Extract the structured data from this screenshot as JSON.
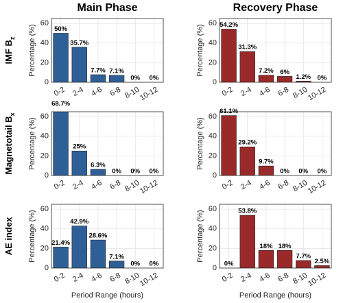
{
  "chart_data": [
    {
      "type": "bar",
      "title": "Main Phase",
      "row_label": "IMF B",
      "row_label_sub": "z",
      "ylabel": "Percentage (%)",
      "categories": [
        "0-2",
        "2-4",
        "4-6",
        "6-8",
        "8-10",
        "10-12"
      ],
      "values": [
        50,
        35.7,
        7.7,
        7.1,
        0,
        0
      ],
      "value_labels": [
        "50%",
        "35.7%",
        "7.7%",
        "7.1%",
        "0%",
        "0%"
      ],
      "color": "#2f5f97",
      "ylim": [
        0,
        65
      ],
      "yticks": [
        0,
        20,
        40,
        60
      ],
      "grid": true
    },
    {
      "type": "bar",
      "title": "Recovery Phase",
      "ylabel": "Percentage (%)",
      "categories": [
        "0-2",
        "2-4",
        "4-6",
        "6-8",
        "8-10",
        "10-12"
      ],
      "values": [
        54.2,
        31.3,
        7.2,
        6,
        1.2,
        0
      ],
      "value_labels": [
        "54.2%",
        "31.3%",
        "7.2%",
        "6%",
        "1.2%",
        "0%"
      ],
      "color": "#9a2a2a",
      "ylim": [
        0,
        65
      ],
      "yticks": [
        0,
        20,
        40,
        60
      ],
      "grid": true
    },
    {
      "type": "bar",
      "row_label": "Magnetotail B",
      "row_label_sub": "x",
      "ylabel": "Percentage (%)",
      "categories": [
        "0-2",
        "2-4",
        "4-6",
        "6-8",
        "8-10",
        "10-12"
      ],
      "values": [
        68.7,
        25,
        6.3,
        0,
        0,
        0
      ],
      "value_labels": [
        "68.7%",
        "25%",
        "6.3%",
        "0%",
        "0%",
        "0%"
      ],
      "color": "#2f5f97",
      "ylim": [
        0,
        65
      ],
      "yticks": [
        0,
        20,
        40,
        60
      ],
      "grid": true
    },
    {
      "type": "bar",
      "ylabel": "Percentage (%)",
      "categories": [
        "0-2",
        "2-4",
        "4-6",
        "6-8",
        "8-10",
        "10-12"
      ],
      "values": [
        61.1,
        29.2,
        9.7,
        0,
        0,
        0
      ],
      "value_labels": [
        "61.1%",
        "29.2%",
        "9.7%",
        "0%",
        "0%",
        "0%"
      ],
      "color": "#9a2a2a",
      "ylim": [
        0,
        65
      ],
      "yticks": [
        0,
        20,
        40,
        60
      ],
      "grid": true
    },
    {
      "type": "bar",
      "row_label": "AE index",
      "ylabel": "Percentage (%)",
      "xlabel": "Period Range (hours)",
      "categories": [
        "0-2",
        "2-4",
        "4-6",
        "6-8",
        "8-10",
        "10-12"
      ],
      "values": [
        21.4,
        42.9,
        28.6,
        7.1,
        0,
        0
      ],
      "value_labels": [
        "21.4%",
        "42.9%",
        "28.6%",
        "7.1%",
        "0%",
        "0%"
      ],
      "color": "#2f5f97",
      "ylim": [
        0,
        65
      ],
      "yticks": [
        0,
        20,
        40,
        60
      ],
      "grid": true
    },
    {
      "type": "bar",
      "ylabel": "Percentage (%)",
      "xlabel": "Period Range (hours)",
      "categories": [
        "0-2",
        "2-4",
        "4-6",
        "6-8",
        "8-10",
        "10-12"
      ],
      "values": [
        0,
        53.8,
        18,
        18,
        7.7,
        2.5
      ],
      "value_labels": [
        "0%",
        "53.8%",
        "18%",
        "18%",
        "7.7%",
        "2.5%"
      ],
      "color": "#9a2a2a",
      "ylim": [
        0,
        65
      ],
      "yticks": [
        0,
        20,
        40,
        60
      ],
      "grid": true
    }
  ]
}
